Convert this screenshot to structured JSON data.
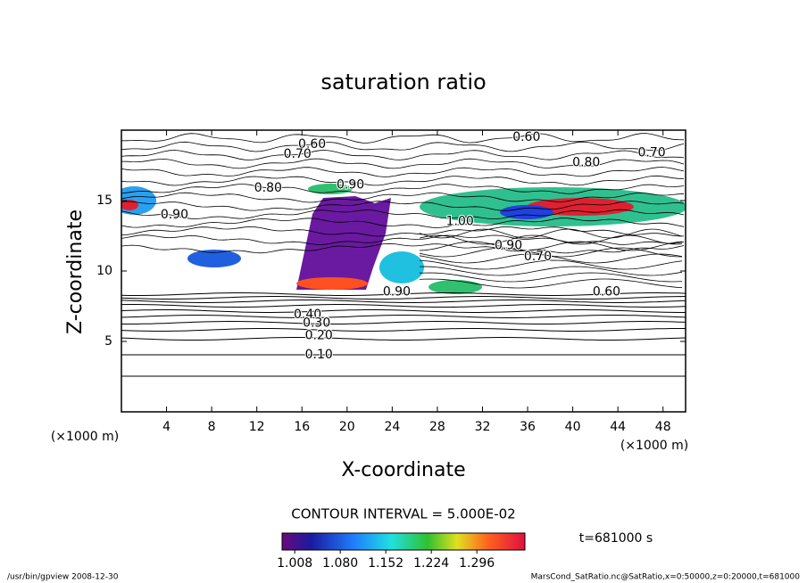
{
  "chart_data": {
    "type": "contour",
    "title": "saturation ratio",
    "x_label": "X-coordinate",
    "y_label": "Z-coordinate",
    "x_unit": "(×1000 m)",
    "y_unit": "(×1000 m)",
    "xlim": [
      0,
      50
    ],
    "xticks": [
      4,
      8,
      12,
      16,
      20,
      24,
      28,
      32,
      36,
      40,
      44,
      48
    ],
    "ylim": [
      0,
      20
    ],
    "yticks": [
      5,
      10,
      15
    ],
    "contour_interval": "CONTOUR INTERVAL = 5.000E-02",
    "time_label": "t=681000 s",
    "contour_labels": [
      {
        "value": 0.6,
        "label": "0.60",
        "x": 16.9,
        "y": 19.0
      },
      {
        "value": 0.7,
        "label": "0.70",
        "x": 15.6,
        "y": 18.3
      },
      {
        "value": 0.6,
        "label": "0.60",
        "x": 35.9,
        "y": 19.5
      },
      {
        "value": 0.8,
        "label": "0.80",
        "x": 41.2,
        "y": 17.7
      },
      {
        "value": 0.7,
        "label": "0.70",
        "x": 47.0,
        "y": 18.4
      },
      {
        "value": 0.8,
        "label": "0.80",
        "x": 13.0,
        "y": 15.9
      },
      {
        "value": 0.9,
        "label": "0.90",
        "x": 20.3,
        "y": 16.1
      },
      {
        "value": 0.9,
        "label": "0.90",
        "x": 4.7,
        "y": 14.0
      },
      {
        "value": 1.0,
        "label": "1.00",
        "x": 30.0,
        "y": 13.5
      },
      {
        "value": 0.9,
        "label": "0.90",
        "x": 34.3,
        "y": 11.8
      },
      {
        "value": 0.7,
        "label": "0.70",
        "x": 36.9,
        "y": 11.0
      },
      {
        "value": 0.6,
        "label": "0.60",
        "x": 43.0,
        "y": 8.5
      },
      {
        "value": 0.9,
        "label": "0.90",
        "x": 24.4,
        "y": 8.5
      },
      {
        "value": 0.4,
        "label": "0.40",
        "x": 16.5,
        "y": 6.9
      },
      {
        "value": 0.3,
        "label": "0.30",
        "x": 17.3,
        "y": 6.3
      },
      {
        "value": 0.2,
        "label": "0.20",
        "x": 17.5,
        "y": 5.4
      },
      {
        "value": 0.1,
        "label": "0.10",
        "x": 17.5,
        "y": 4.05
      }
    ],
    "colorbar": {
      "clim": [
        0.988,
        1.372
      ],
      "ticks": [
        1.008,
        {
          "value": 1.08,
          "label": "1.080"
        },
        1.152,
        1.224,
        1.296
      ]
    },
    "footer": {
      "left": "/usr/bin/gpview   2008-12-30",
      "right": "MarsCond_SatRatio.nc@SatRatio,x=0:50000,z=0:20000,t=681000"
    }
  }
}
